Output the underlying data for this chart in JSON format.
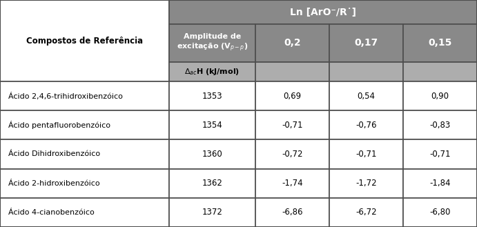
{
  "col1_header": "Compostos de Referência",
  "top_header_text": "Ln [ArO⁻/R˙]",
  "col2_header_line1": "Amplitude de",
  "col2_header_line2": "excitação (V",
  "col2_header_sub": "p-p",
  "col2_header_end": ")",
  "col3_header": "0,2",
  "col4_header": "0,17",
  "col5_header": "0,15",
  "subheader": "Δ",
  "subheader2": "ac",
  "subheader3": "H (kJ/mol)",
  "rows": [
    [
      "Ácido 2,4,6-trihidroxibenzóico",
      "1353",
      "0,69",
      "0,54",
      "0,90"
    ],
    [
      "Ácido pentafluorobenzóico",
      "1354",
      "-0,71",
      "-0,76",
      "-0,83"
    ],
    [
      "Ácido Dihidroxibenzóico",
      "1360",
      "-0,72",
      "-0,71",
      "-0,71"
    ],
    [
      "Ácido 2-hidroxibenzóico",
      "1362",
      "-1,74",
      "-1,72",
      "-1,84"
    ],
    [
      "Ácido 4-cianobenzóico",
      "1372",
      "-6,86",
      "-6,72",
      "-6,80"
    ]
  ],
  "header_color": "#898989",
  "subheader_color": "#adadad",
  "white": "#ffffff",
  "border_color": "#4d4d4d",
  "header_text_color": "#ffffff",
  "body_text_color": "#000000",
  "fig_w": 6.91,
  "fig_h": 3.29,
  "dpi": 100
}
